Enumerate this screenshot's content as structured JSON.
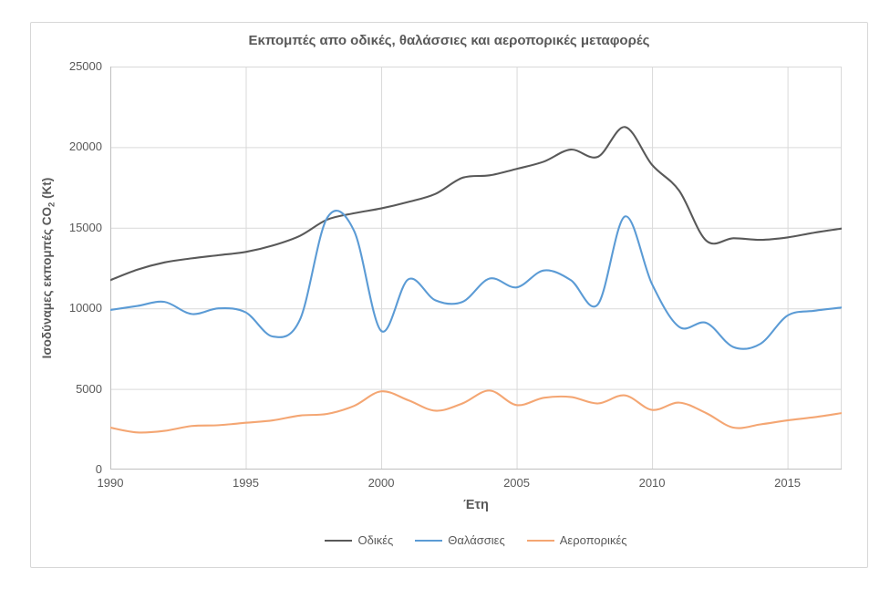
{
  "chart_data": {
    "type": "line",
    "smooth": true,
    "title": "Εκπομπές απο οδικές, θαλάσσιες και αεροπορικές μεταφορές",
    "xlabel": "Έτη",
    "ylabel": "Ισοδύναμες εκπομπές CO₂ (Kt)",
    "ylabel_parts": {
      "prefix": "Ισοδύναμες εκπομπές CO",
      "sub": "2",
      "suffix": " (Kt)"
    },
    "xlim": [
      1990,
      2017
    ],
    "ylim": [
      0,
      25000
    ],
    "x_ticks": [
      1990,
      1995,
      2000,
      2005,
      2010,
      2015
    ],
    "y_ticks": [
      0,
      5000,
      10000,
      15000,
      20000,
      25000
    ],
    "grid": true,
    "legend_position": "bottom",
    "axis_color": "#bfbfbf",
    "grid_color": "#d9d9d9",
    "x": [
      1990,
      1991,
      1992,
      1993,
      1994,
      1995,
      1996,
      1997,
      1998,
      1999,
      2000,
      2001,
      2002,
      2003,
      2004,
      2005,
      2006,
      2007,
      2008,
      2009,
      2010,
      2011,
      2012,
      2013,
      2014,
      2015,
      2016,
      2017
    ],
    "series": [
      {
        "name": "Οδικές",
        "color": "#595959",
        "values": [
          11750,
          12400,
          12850,
          13100,
          13300,
          13500,
          13900,
          14500,
          15500,
          15900,
          16200,
          16600,
          17100,
          18100,
          18250,
          18650,
          19100,
          19850,
          19400,
          21250,
          18900,
          17300,
          14200,
          14350,
          14250,
          14400,
          14700,
          14950
        ]
      },
      {
        "name": "Θαλάσσιες",
        "color": "#5b9bd5",
        "values": [
          9900,
          10150,
          10400,
          9650,
          10000,
          9750,
          8250,
          9300,
          15600,
          14800,
          8600,
          11800,
          10500,
          10400,
          11850,
          11300,
          12350,
          11750,
          10250,
          15700,
          11500,
          8850,
          9100,
          7600,
          7800,
          9550,
          9850,
          10050
        ]
      },
      {
        "name": "Αεροπορικές",
        "color": "#f4a673",
        "values": [
          2600,
          2300,
          2400,
          2700,
          2750,
          2900,
          3050,
          3350,
          3450,
          3950,
          4850,
          4300,
          3650,
          4100,
          4900,
          4000,
          4450,
          4500,
          4100,
          4600,
          3700,
          4150,
          3500,
          2600,
          2800,
          3050,
          3250,
          3500
        ]
      }
    ]
  }
}
